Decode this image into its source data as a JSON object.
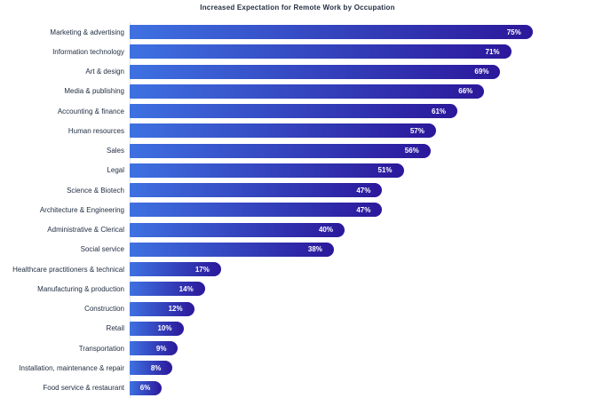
{
  "chart_data": {
    "type": "bar",
    "orientation": "horizontal",
    "title": "Increased Expectation for Remote Work by Occupation",
    "xlabel": "",
    "ylabel": "",
    "xlim": [
      0,
      80
    ],
    "grid": false,
    "legend": "none",
    "value_suffix": "%",
    "categories": [
      "Marketing & advertising",
      "Information technology",
      "Art & design",
      "Media & publishing",
      "Accounting & finance",
      "Human resources",
      "Sales",
      "Legal",
      "Science & Biotech",
      "Architecture & Engineering",
      "Administrative & Clerical",
      "Social service",
      "Healthcare practitioners & technical",
      "Manufacturing & production",
      "Construction",
      "Retail",
      "Transportation",
      "Installation, maintenance & repair",
      "Food service & restaurant"
    ],
    "values": [
      75,
      71,
      69,
      66,
      61,
      57,
      56,
      51,
      47,
      47,
      40,
      38,
      17,
      14,
      12,
      10,
      9,
      8,
      6
    ],
    "value_labels": [
      "75%",
      "71%",
      "69%",
      "66%",
      "61%",
      "57%",
      "56%",
      "51%",
      "47%",
      "47%",
      "40%",
      "38%",
      "17%",
      "14%",
      "12%",
      "10%",
      "9%",
      "8%",
      "6%"
    ],
    "colors": {
      "bar_gradient_start": "#3E71E1",
      "bar_gradient_end": "#2B189B",
      "category_text": "#233044",
      "title_text": "#233044",
      "value_text": "#FFFFFF",
      "axis_line": "#E0E4EA",
      "background": "#FFFFFF"
    }
  }
}
